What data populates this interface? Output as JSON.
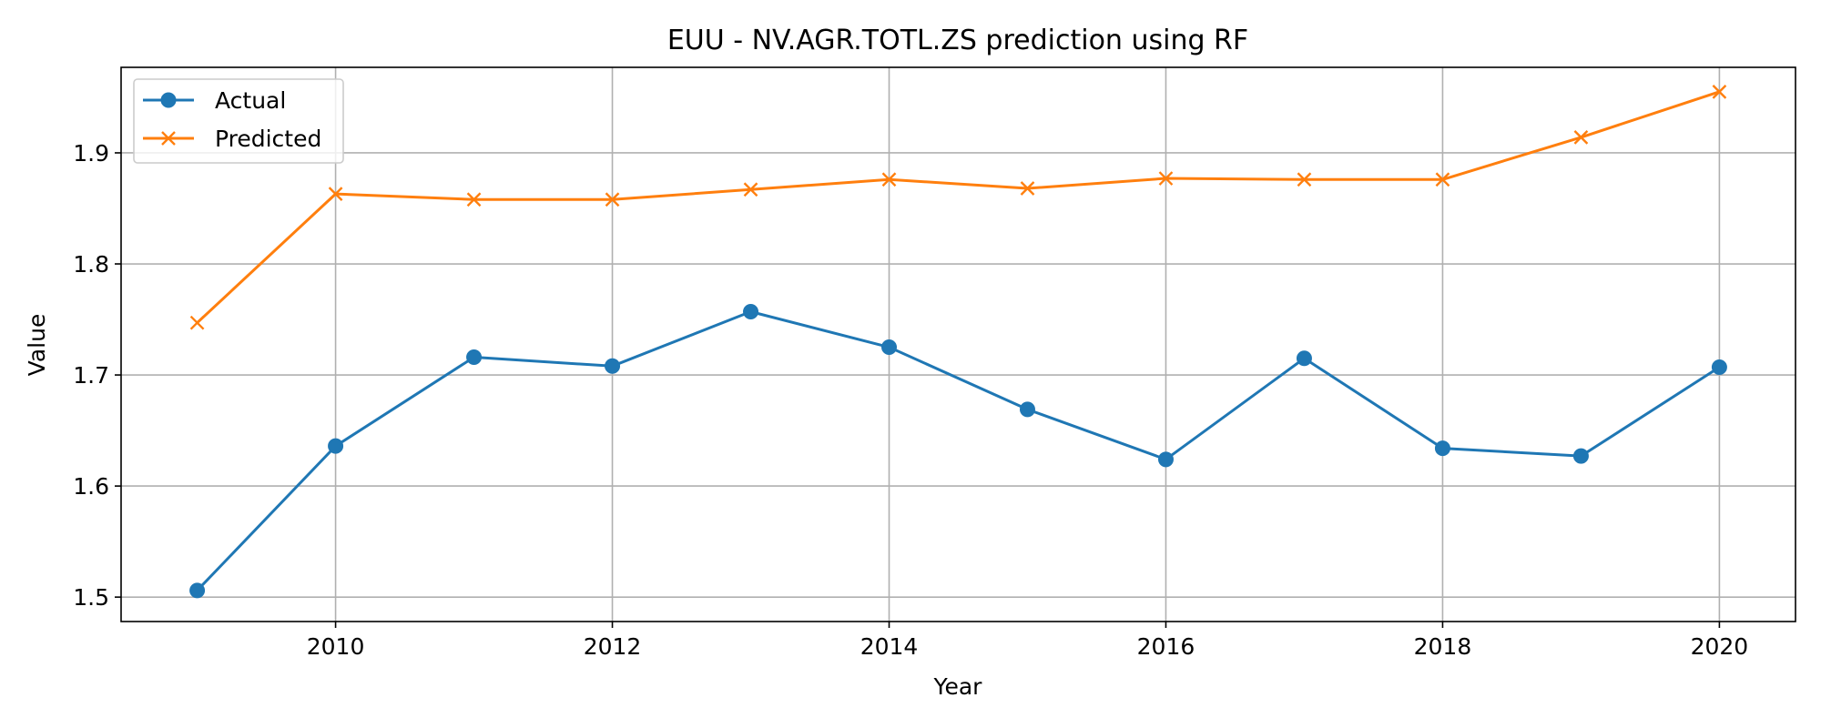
{
  "chart_data": {
    "type": "line",
    "title": "EUU - NV.AGR.TOTL.ZS prediction using RF",
    "xlabel": "Year",
    "ylabel": "Value",
    "x": [
      2009,
      2010,
      2011,
      2012,
      2013,
      2014,
      2015,
      2016,
      2017,
      2018,
      2019,
      2020
    ],
    "xlim": [
      2008.45,
      2020.55
    ],
    "ylim": [
      1.478,
      1.977
    ],
    "xticks": [
      2010,
      2012,
      2014,
      2016,
      2018,
      2020
    ],
    "yticks": [
      1.5,
      1.6,
      1.7,
      1.8,
      1.9
    ],
    "ytick_labels": [
      "1.5",
      "1.6",
      "1.7",
      "1.8",
      "1.9"
    ],
    "grid": true,
    "legend_position": "upper-left",
    "series": [
      {
        "name": "Actual",
        "color": "#1f77b4",
        "marker": "circle",
        "values": [
          1.506,
          1.636,
          1.716,
          1.708,
          1.757,
          1.725,
          1.669,
          1.624,
          1.715,
          1.634,
          1.627,
          1.707
        ]
      },
      {
        "name": "Predicted",
        "color": "#ff7f0e",
        "marker": "x",
        "values": [
          1.747,
          1.863,
          1.858,
          1.858,
          1.867,
          1.876,
          1.868,
          1.877,
          1.876,
          1.876,
          1.914,
          1.955
        ]
      }
    ]
  }
}
